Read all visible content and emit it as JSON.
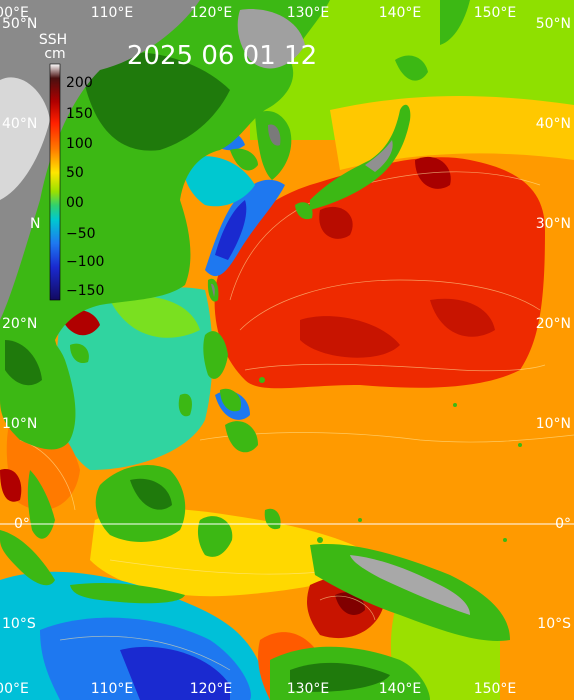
{
  "map": {
    "title": "2025  06  01  12",
    "colorbar": {
      "title": "SSH",
      "unit": "cm",
      "ticks": [
        "200",
        "150",
        "100",
        "50",
        "00",
        "−50",
        "−100",
        "−150"
      ]
    },
    "lon_labels": {
      "top": [
        "00°E",
        "110°E",
        "120°E",
        "130°E",
        "140°E",
        "150°E"
      ],
      "bottom": [
        "00°E",
        "110°E",
        "120°E",
        "130°E",
        "140°E",
        "150°E"
      ]
    },
    "lat_labels": {
      "left": [
        "50°N",
        "40°N",
        "N",
        "20°N",
        "10°N",
        "0°",
        "10°S"
      ],
      "right": [
        "50°N",
        "40°N",
        "30°N",
        "20°N",
        "10°N",
        "0°",
        "10°S"
      ]
    },
    "colors": {
      "ocean_base": "#ff9a00",
      "warm_core": "#ee2a00",
      "land": "#3cb814",
      "mountain": "#8a8a8a",
      "cold_eddy": "#1f46dc"
    }
  }
}
